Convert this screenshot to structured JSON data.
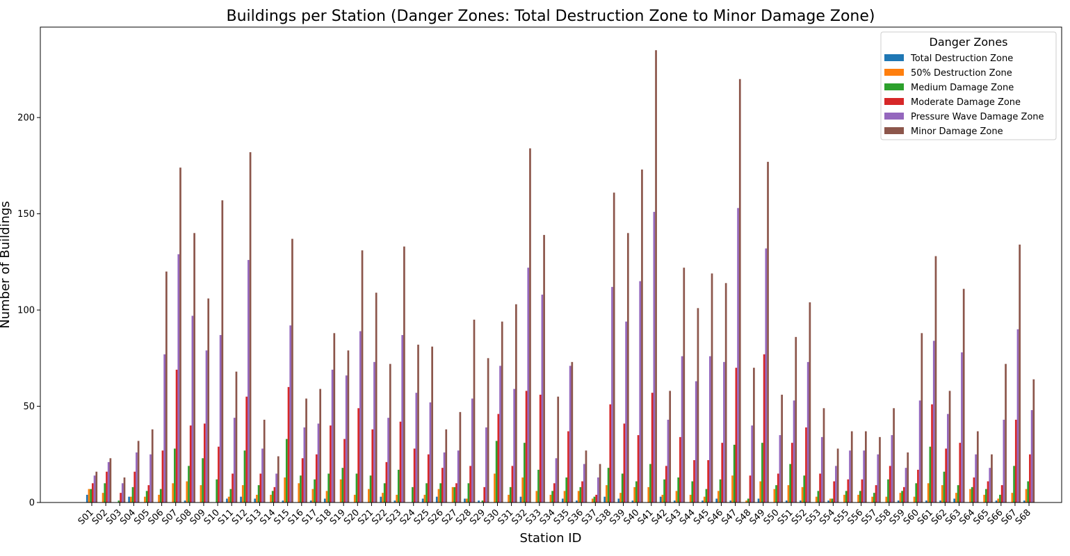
{
  "chart_data": {
    "type": "bar",
    "title": "Buildings per Station (Danger Zones: Total Destruction Zone to Minor Damage Zone)",
    "xlabel": "Station ID",
    "ylabel": "Number of Buildings",
    "ylim": [
      0,
      247
    ],
    "yticks": [
      0,
      50,
      100,
      150,
      200
    ],
    "grid": false,
    "legend": {
      "title": "Danger Zones",
      "placement": "top-right"
    },
    "categories": [
      "S01",
      "S02",
      "S03",
      "S04",
      "S05",
      "S06",
      "S07",
      "S08",
      "S09",
      "S10",
      "S11",
      "S12",
      "S13",
      "S14",
      "S15",
      "S16",
      "S17",
      "S18",
      "S19",
      "S20",
      "S21",
      "S22",
      "S23",
      "S24",
      "S25",
      "S26",
      "S27",
      "S28",
      "S29",
      "S30",
      "S31",
      "S32",
      "S33",
      "S34",
      "S35",
      "S36",
      "S37",
      "S38",
      "S39",
      "S40",
      "S41",
      "S42",
      "S43",
      "S44",
      "S45",
      "S46",
      "S47",
      "S48",
      "S49",
      "S50",
      "S51",
      "S52",
      "S53",
      "S54",
      "S55",
      "S56",
      "S57",
      "S58",
      "S59",
      "S60",
      "S61",
      "S62",
      "S63",
      "S64",
      "S65",
      "S66",
      "S67",
      "S68"
    ],
    "series": [
      {
        "name": "Total Destruction Zone",
        "color": "#1f77b4",
        "values": [
          4,
          0,
          0,
          3,
          0,
          0,
          0,
          1,
          0,
          0,
          2,
          3,
          2,
          0,
          1,
          0,
          1,
          2,
          0,
          0,
          0,
          3,
          1,
          0,
          2,
          3,
          0,
          2,
          1,
          0,
          0,
          3,
          0,
          0,
          2,
          1,
          0,
          3,
          2,
          1,
          0,
          3,
          1,
          0,
          1,
          2,
          1,
          0,
          2,
          0,
          1,
          1,
          0,
          1,
          0,
          0,
          0,
          0,
          1,
          0,
          1,
          1,
          2,
          0,
          0,
          1,
          0,
          1
        ]
      },
      {
        "name": "50% Destruction Zone",
        "color": "#ff7f0e",
        "values": [
          7,
          5,
          0,
          3,
          3,
          4,
          10,
          11,
          9,
          0,
          3,
          9,
          4,
          4,
          13,
          10,
          7,
          6,
          12,
          4,
          7,
          5,
          4,
          0,
          4,
          7,
          8,
          2,
          0,
          15,
          4,
          13,
          6,
          4,
          6,
          6,
          2,
          9,
          5,
          8,
          8,
          4,
          6,
          4,
          3,
          6,
          14,
          1,
          11,
          7,
          9,
          8,
          3,
          2,
          4,
          4,
          3,
          3,
          5,
          3,
          10,
          9,
          5,
          7,
          4,
          2,
          5,
          7
        ]
      },
      {
        "name": "Medium Damage Zone",
        "color": "#2ca02c",
        "values": [
          7,
          10,
          1,
          8,
          6,
          7,
          28,
          19,
          23,
          12,
          7,
          27,
          9,
          6,
          33,
          14,
          12,
          15,
          18,
          15,
          14,
          10,
          17,
          8,
          10,
          10,
          8,
          10,
          1,
          32,
          8,
          31,
          17,
          6,
          13,
          8,
          3,
          18,
          15,
          11,
          20,
          12,
          13,
          11,
          7,
          12,
          30,
          2,
          31,
          9,
          20,
          14,
          6,
          2,
          6,
          6,
          5,
          12,
          6,
          10,
          29,
          16,
          9,
          8,
          7,
          4,
          19,
          11
        ]
      },
      {
        "name": "Moderate Damage Zone",
        "color": "#d62728",
        "values": [
          10,
          16,
          5,
          16,
          9,
          27,
          69,
          40,
          41,
          29,
          15,
          55,
          15,
          8,
          60,
          23,
          25,
          40,
          33,
          49,
          38,
          21,
          42,
          28,
          25,
          18,
          10,
          19,
          8,
          46,
          19,
          58,
          56,
          10,
          37,
          11,
          4,
          51,
          41,
          35,
          57,
          19,
          34,
          22,
          22,
          31,
          70,
          14,
          77,
          15,
          31,
          39,
          15,
          11,
          12,
          12,
          9,
          19,
          8,
          17,
          51,
          28,
          31,
          13,
          11,
          9,
          43,
          25
        ]
      },
      {
        "name": "Pressure Wave Damage Zone",
        "color": "#9467bd",
        "values": [
          14,
          21,
          10,
          26,
          25,
          77,
          129,
          97,
          79,
          87,
          44,
          126,
          28,
          15,
          92,
          39,
          41,
          69,
          66,
          89,
          73,
          44,
          87,
          57,
          52,
          26,
          27,
          54,
          39,
          71,
          59,
          122,
          108,
          23,
          71,
          20,
          13,
          112,
          94,
          115,
          151,
          43,
          76,
          63,
          76,
          73,
          153,
          40,
          132,
          35,
          53,
          73,
          34,
          19,
          27,
          27,
          25,
          35,
          18,
          53,
          84,
          46,
          78,
          25,
          18,
          43,
          90,
          48
        ]
      },
      {
        "name": "Minor Damage Zone",
        "color": "#8c564b",
        "values": [
          16,
          23,
          13,
          32,
          38,
          120,
          174,
          140,
          106,
          157,
          68,
          182,
          43,
          24,
          137,
          54,
          59,
          88,
          79,
          131,
          109,
          72,
          133,
          82,
          81,
          38,
          47,
          95,
          75,
          94,
          103,
          184,
          139,
          55,
          73,
          27,
          20,
          161,
          140,
          173,
          235,
          58,
          122,
          101,
          119,
          114,
          220,
          70,
          177,
          56,
          86,
          104,
          49,
          28,
          37,
          37,
          34,
          49,
          26,
          88,
          128,
          58,
          111,
          37,
          25,
          72,
          134,
          64
        ]
      }
    ]
  }
}
